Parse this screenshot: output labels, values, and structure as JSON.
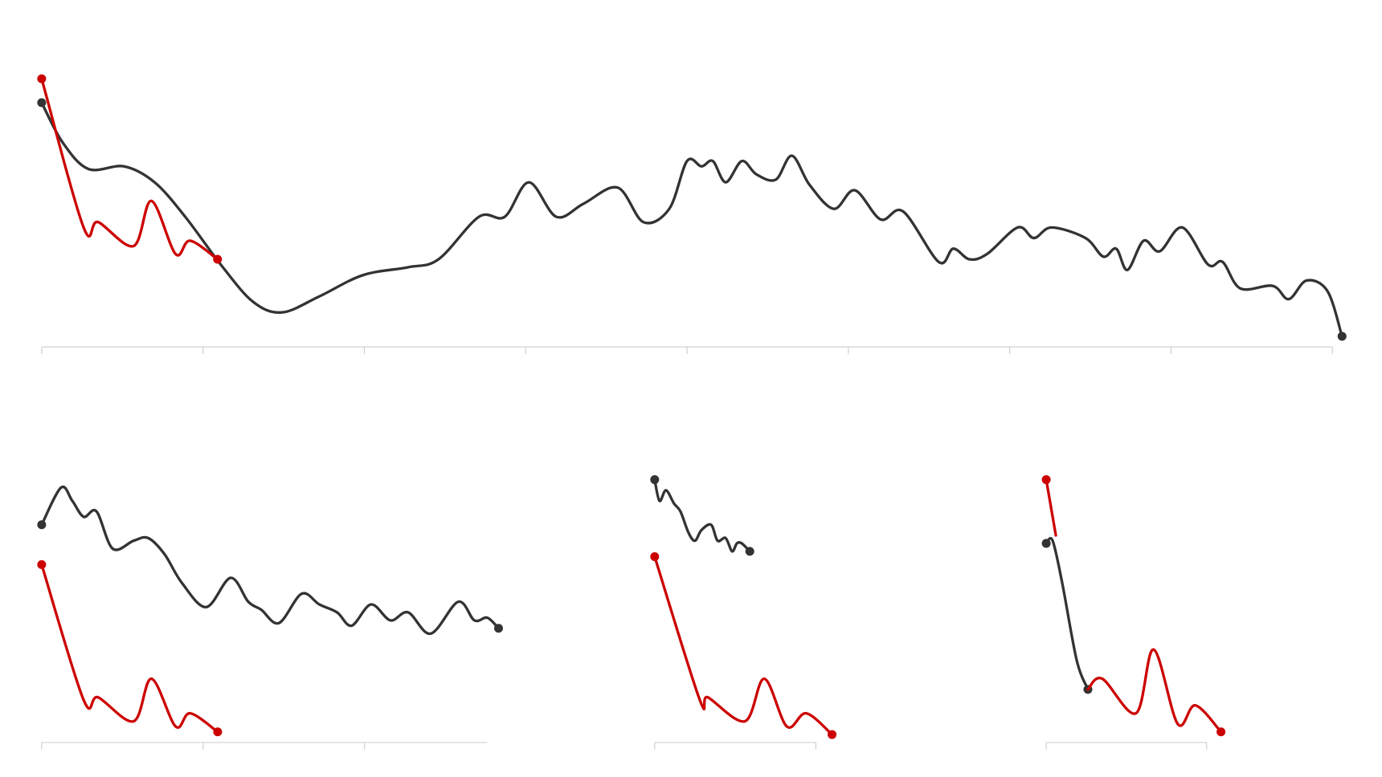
{
  "chart_data": [
    {
      "type": "line",
      "xlim": [
        0,
        8
      ],
      "xticks": [
        0,
        1,
        2,
        3,
        4,
        5,
        6,
        7,
        8
      ],
      "ylim": [
        0,
        110
      ],
      "series": [
        {
          "color": "#333333",
          "x": [
            0,
            0.13,
            0.29,
            0.51,
            0.7,
            0.89,
            1.11,
            1.31,
            1.49,
            1.72,
            1.99,
            2.27,
            2.46,
            2.71,
            2.87,
            3.02,
            3.19,
            3.36,
            3.57,
            3.73,
            3.89,
            4.0,
            4.09,
            4.16,
            4.24,
            4.34,
            4.43,
            4.55,
            4.65,
            4.76,
            4.91,
            5.04,
            5.2,
            5.34,
            5.56,
            5.65,
            5.75,
            5.86,
            6.05,
            6.15,
            6.26,
            6.47,
            6.58,
            6.66,
            6.73,
            6.83,
            6.93,
            7.07,
            7.23,
            7.32,
            7.43,
            7.63,
            7.73,
            7.84,
            7.97,
            8.06
          ],
          "values": [
            92,
            77,
            67,
            68,
            62,
            49,
            31,
            17,
            13,
            19,
            27,
            30,
            33,
            49,
            49,
            62,
            49,
            54,
            60,
            47,
            52,
            70,
            68,
            70,
            62,
            70,
            65,
            63,
            72,
            61,
            52,
            59,
            48,
            51,
            32,
            37,
            33,
            35,
            45,
            41,
            45,
            41,
            34,
            37,
            29,
            40,
            36,
            45,
            31,
            32,
            22,
            23,
            18,
            25,
            21,
            4
          ]
        },
        {
          "color": "#cc0000",
          "x": [
            0,
            0.26,
            0.35,
            0.57,
            0.68,
            0.83,
            0.92,
            1.09
          ],
          "values": [
            101,
            45,
            47,
            38,
            55,
            35,
            40,
            33
          ]
        }
      ]
    },
    {
      "type": "line",
      "xlim": [
        0,
        2.76
      ],
      "xticks": [
        0,
        1,
        2
      ],
      "ylim": [
        0,
        110
      ],
      "series": [
        {
          "color": "#333333",
          "x": [
            0,
            0.12,
            0.19,
            0.26,
            0.34,
            0.44,
            0.57,
            0.66,
            0.76,
            0.87,
            1.02,
            1.17,
            1.28,
            1.36,
            1.47,
            1.61,
            1.72,
            1.83,
            1.92,
            2.04,
            2.16,
            2.27,
            2.41,
            2.58,
            2.68,
            2.76,
            2.83
          ],
          "values": [
            82,
            96,
            91,
            85,
            87,
            73,
            76,
            77,
            71,
            60,
            51,
            62,
            53,
            50,
            45,
            56,
            52,
            49,
            44,
            52,
            46,
            49,
            41,
            53,
            46,
            47,
            43
          ]
        },
        {
          "color": "#cc0000",
          "x": [
            0,
            0.26,
            0.35,
            0.57,
            0.68,
            0.83,
            0.92,
            1.09
          ],
          "values": [
            67,
            16,
            17,
            8,
            24,
            6,
            11,
            4
          ]
        }
      ]
    },
    {
      "type": "line",
      "xlim": [
        0,
        1
      ],
      "xticks": [
        0,
        1
      ],
      "ylim": [
        0,
        110
      ],
      "series": [
        {
          "color": "#333333",
          "x": [
            0,
            0.03,
            0.07,
            0.12,
            0.16,
            0.21,
            0.25,
            0.29,
            0.35,
            0.39,
            0.44,
            0.48,
            0.51,
            0.54,
            0.59
          ],
          "values": [
            99,
            91,
            95,
            90,
            87,
            79,
            76,
            80,
            82,
            76,
            77,
            72,
            75,
            75,
            72
          ]
        },
        {
          "color": "#cc0000",
          "x": [
            0,
            0.28,
            0.33,
            0.56,
            0.68,
            0.82,
            0.94,
            1.1
          ],
          "values": [
            70,
            16,
            17,
            8,
            24,
            6,
            11,
            3
          ]
        }
      ]
    },
    {
      "type": "line",
      "xlim": [
        0,
        1
      ],
      "xticks": [
        0,
        1
      ],
      "ylim": [
        0,
        110
      ],
      "series": [
        {
          "color": "#333333",
          "x": [
            0,
            0.04,
            0.1,
            0.19,
            0.26
          ],
          "values": [
            75,
            76,
            60,
            31,
            20
          ]
        },
        {
          "color": "#cc0000",
          "x": [
            0,
            0.06,
            0.16,
            0.26,
            0.35,
            0.56,
            0.67,
            0.82,
            0.93,
            1.09
          ],
          "values": [
            99,
            78,
            null,
            20,
            24,
            11,
            35,
            7,
            14,
            4
          ]
        }
      ]
    }
  ]
}
